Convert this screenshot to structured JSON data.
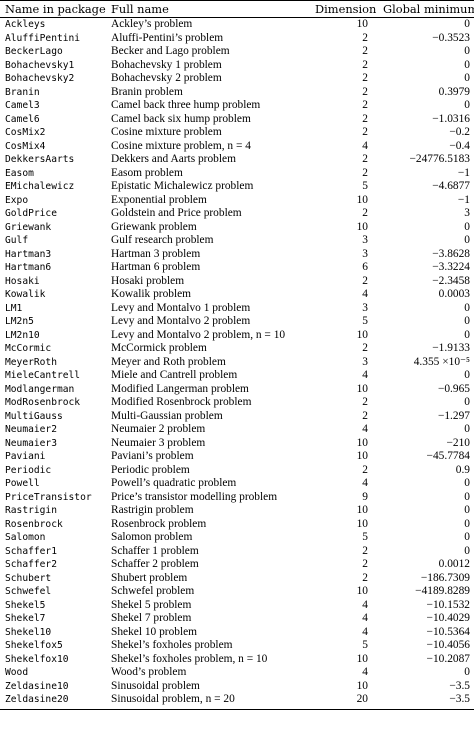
{
  "table": {
    "headers": {
      "name": "Name in package",
      "full": "Full name",
      "dim": "Dimension",
      "min": "Global minimum"
    },
    "rows": [
      {
        "name": "Ackleys",
        "full": "Ackley’s problem",
        "dim": "10",
        "min": "0"
      },
      {
        "name": "AluffiPentini",
        "full": "Aluffi-Pentini’s problem",
        "dim": "2",
        "min": "−0.3523"
      },
      {
        "name": "BeckerLago",
        "full": "Becker and Lago problem",
        "dim": "2",
        "min": "0"
      },
      {
        "name": "Bohachevsky1",
        "full": "Bohachevsky 1 problem",
        "dim": "2",
        "min": "0"
      },
      {
        "name": "Bohachevsky2",
        "full": "Bohachevsky 2 problem",
        "dim": "2",
        "min": "0"
      },
      {
        "name": "Branin",
        "full": "Branin problem",
        "dim": "2",
        "min": "0.3979"
      },
      {
        "name": "Camel3",
        "full": "Camel back three hump problem",
        "dim": "2",
        "min": "0"
      },
      {
        "name": "Camel6",
        "full": "Camel back six hump problem",
        "dim": "2",
        "min": "−1.0316"
      },
      {
        "name": "CosMix2",
        "full": "Cosine mixture problem",
        "dim": "2",
        "min": "−0.2"
      },
      {
        "name": "CosMix4",
        "full": "Cosine mixture problem, n = 4",
        "dim": "4",
        "min": "−0.4"
      },
      {
        "name": "DekkersAarts",
        "full": "Dekkers and Aarts problem",
        "dim": "2",
        "min": "−24776.5183"
      },
      {
        "name": "Easom",
        "full": "Easom problem",
        "dim": "2",
        "min": "−1"
      },
      {
        "name": "EMichalewicz",
        "full": "Epistatic Michalewicz problem",
        "dim": "5",
        "min": "−4.6877"
      },
      {
        "name": "Expo",
        "full": "Exponential problem",
        "dim": "10",
        "min": "−1"
      },
      {
        "name": "GoldPrice",
        "full": "Goldstein and Price problem",
        "dim": "2",
        "min": "3"
      },
      {
        "name": "Griewank",
        "full": "Griewank problem",
        "dim": "10",
        "min": "0"
      },
      {
        "name": "Gulf",
        "full": "Gulf research problem",
        "dim": "3",
        "min": "0"
      },
      {
        "name": "Hartman3",
        "full": "Hartman 3 problem",
        "dim": "3",
        "min": "−3.8628"
      },
      {
        "name": "Hartman6",
        "full": "Hartman 6 problem",
        "dim": "6",
        "min": "−3.3224"
      },
      {
        "name": "Hosaki",
        "full": "Hosaki problem",
        "dim": "2",
        "min": "−2.3458"
      },
      {
        "name": "Kowalik",
        "full": "Kowalik problem",
        "dim": "4",
        "min": "0.0003"
      },
      {
        "name": "LM1",
        "full": "Levy and Montalvo 1 problem",
        "dim": "3",
        "min": "0"
      },
      {
        "name": "LM2n5",
        "full": "Levy and Montalvo 2 problem",
        "dim": "5",
        "min": "0"
      },
      {
        "name": "LM2n10",
        "full": "Levy and Montalvo 2 problem, n = 10",
        "dim": "10",
        "min": "0"
      },
      {
        "name": "McCormic",
        "full": "McCormick problem",
        "dim": "2",
        "min": "−1.9133"
      },
      {
        "name": "MeyerRoth",
        "full": "Meyer and Roth problem",
        "dim": "3",
        "min": "4.355 ×10⁻⁵"
      },
      {
        "name": "MieleCantrell",
        "full": "Miele and Cantrell problem",
        "dim": "4",
        "min": "0"
      },
      {
        "name": "Modlangerman",
        "full": "Modified Langerman problem",
        "dim": "10",
        "min": "−0.965"
      },
      {
        "name": "ModRosenbrock",
        "full": "Modified Rosenbrock problem",
        "dim": "2",
        "min": "0"
      },
      {
        "name": "MultiGauss",
        "full": "Multi-Gaussian problem",
        "dim": "2",
        "min": "−1.297"
      },
      {
        "name": "Neumaier2",
        "full": "Neumaier 2 problem",
        "dim": "4",
        "min": "0"
      },
      {
        "name": "Neumaier3",
        "full": "Neumaier 3 problem",
        "dim": "10",
        "min": "−210"
      },
      {
        "name": "Paviani",
        "full": "Paviani’s problem",
        "dim": "10",
        "min": "−45.7784"
      },
      {
        "name": "Periodic",
        "full": "Periodic problem",
        "dim": "2",
        "min": "0.9"
      },
      {
        "name": "Powell",
        "full": "Powell’s quadratic problem",
        "dim": "4",
        "min": "0"
      },
      {
        "name": "PriceTransistor",
        "full": "Price’s transistor modelling problem",
        "dim": "9",
        "min": "0"
      },
      {
        "name": "Rastrigin",
        "full": "Rastrigin problem",
        "dim": "10",
        "min": "0"
      },
      {
        "name": "Rosenbrock",
        "full": "Rosenbrock problem",
        "dim": "10",
        "min": "0"
      },
      {
        "name": "Salomon",
        "full": "Salomon problem",
        "dim": "5",
        "min": "0"
      },
      {
        "name": "Schaffer1",
        "full": "Schaffer 1 problem",
        "dim": "2",
        "min": "0"
      },
      {
        "name": "Schaffer2",
        "full": "Schaffer 2 problem",
        "dim": "2",
        "min": "0.0012"
      },
      {
        "name": "Schubert",
        "full": "Shubert problem",
        "dim": "2",
        "min": "−186.7309"
      },
      {
        "name": "Schwefel",
        "full": "Schwefel problem",
        "dim": "10",
        "min": "−4189.8289"
      },
      {
        "name": "Shekel5",
        "full": "Shekel 5 problem",
        "dim": "4",
        "min": "−10.1532"
      },
      {
        "name": "Shekel7",
        "full": "Shekel 7 problem",
        "dim": "4",
        "min": "−10.4029"
      },
      {
        "name": "Shekel10",
        "full": "Shekel 10 problem",
        "dim": "4",
        "min": "−10.5364"
      },
      {
        "name": "Shekelfox5",
        "full": "Shekel’s foxholes problem",
        "dim": "5",
        "min": "−10.4056"
      },
      {
        "name": "Shekelfox10",
        "full": "Shekel’s foxholes problem, n = 10",
        "dim": "10",
        "min": "−10.2087"
      },
      {
        "name": "Wood",
        "full": "Wood’s problem",
        "dim": "4",
        "min": "0"
      },
      {
        "name": "Zeldasine10",
        "full": "Sinusoidal problem",
        "dim": "10",
        "min": "−3.5"
      },
      {
        "name": "Zeldasine20",
        "full": "Sinusoidal problem, n = 20",
        "dim": "20",
        "min": "−3.5"
      }
    ]
  }
}
